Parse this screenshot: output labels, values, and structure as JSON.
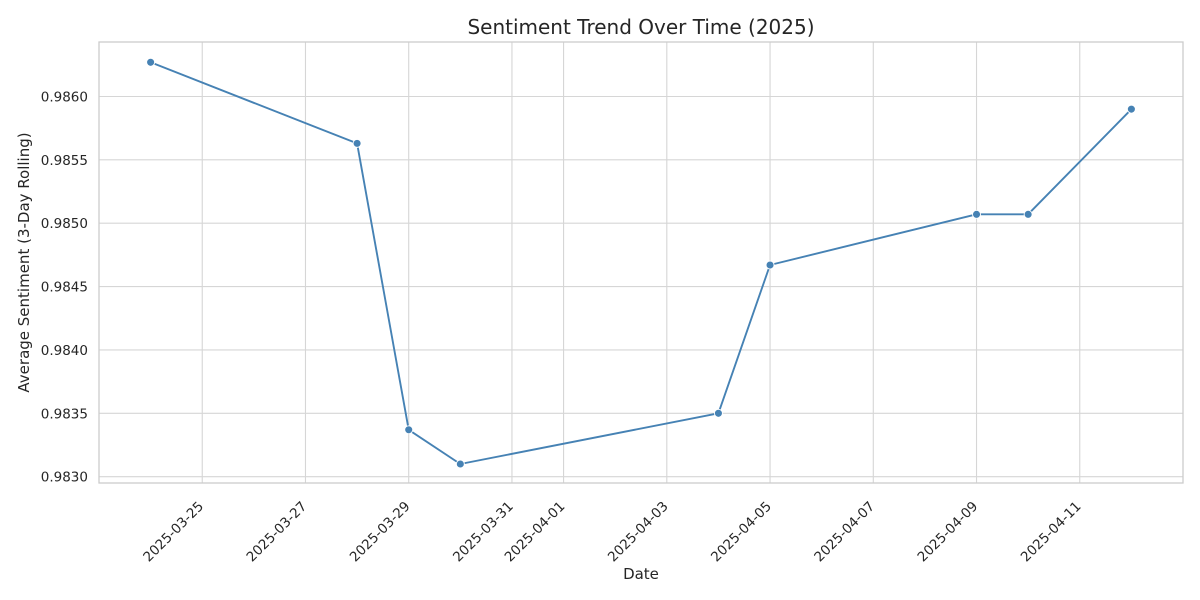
{
  "chart_data": {
    "type": "line",
    "title": "Sentiment Trend Over Time (2025)",
    "xlabel": "Date",
    "ylabel": "Average Sentiment (3-Day Rolling)",
    "x_type": "date",
    "xlim": [
      "2025-03-23",
      "2025-04-13"
    ],
    "ylim": [
      0.98295,
      0.98643
    ],
    "grid": true,
    "legend": "none",
    "x_ticks": [
      "2025-03-25",
      "2025-03-27",
      "2025-03-29",
      "2025-03-31",
      "2025-04-01",
      "2025-04-03",
      "2025-04-05",
      "2025-04-07",
      "2025-04-09",
      "2025-04-11"
    ],
    "y_ticks": [
      "0.9830",
      "0.9835",
      "0.9840",
      "0.9845",
      "0.9850",
      "0.9855",
      "0.9860"
    ],
    "series": [
      {
        "color": "#4682b4",
        "x": [
          "2025-03-24",
          "2025-03-28",
          "2025-03-29",
          "2025-03-30",
          "2025-04-04",
          "2025-04-05",
          "2025-04-09",
          "2025-04-10",
          "2025-04-12"
        ],
        "y": [
          0.98627,
          0.98563,
          0.98337,
          0.9831,
          0.9835,
          0.98467,
          0.98507,
          0.98507,
          0.9859
        ]
      }
    ]
  }
}
